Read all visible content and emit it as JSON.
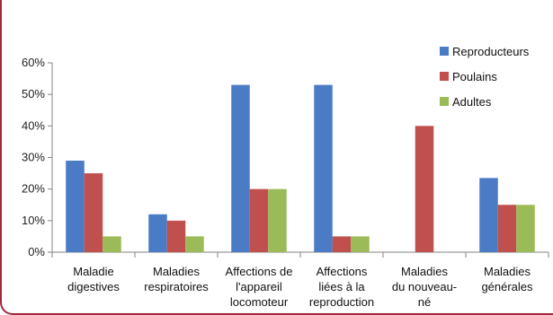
{
  "header": {
    "title": ""
  },
  "chart_data": {
    "type": "bar",
    "title": "",
    "xlabel": "",
    "ylabel": "",
    "ylim": [
      0,
      0.6
    ],
    "ytick_values": [
      0,
      0.1,
      0.2,
      0.3,
      0.4,
      0.5,
      0.6
    ],
    "ytick_labels": [
      "0%",
      "10%",
      "20%",
      "30%",
      "40%",
      "50%",
      "60%"
    ],
    "categories": [
      [
        "Maladie",
        "digestives"
      ],
      [
        "Maladies",
        "respiratoires"
      ],
      [
        "Affections de",
        "l'appareil",
        "locomoteur"
      ],
      [
        "Affections",
        "liées à la",
        "reproduction"
      ],
      [
        "Maladies",
        "du nouveau-",
        "né"
      ],
      [
        "Maladies",
        "générales"
      ]
    ],
    "series": [
      {
        "name": "Reproducteurs",
        "color": "#4a7bc4",
        "values": [
          0.29,
          0.12,
          0.53,
          0.53,
          0.0,
          0.235
        ]
      },
      {
        "name": "Poulains",
        "color": "#c0504d",
        "values": [
          0.25,
          0.1,
          0.2,
          0.05,
          0.4,
          0.15
        ]
      },
      {
        "name": "Adultes",
        "color": "#9bbb59",
        "values": [
          0.05,
          0.05,
          0.2,
          0.05,
          0.0,
          0.15
        ]
      }
    ],
    "legend_position": "top-right",
    "grid": false
  }
}
